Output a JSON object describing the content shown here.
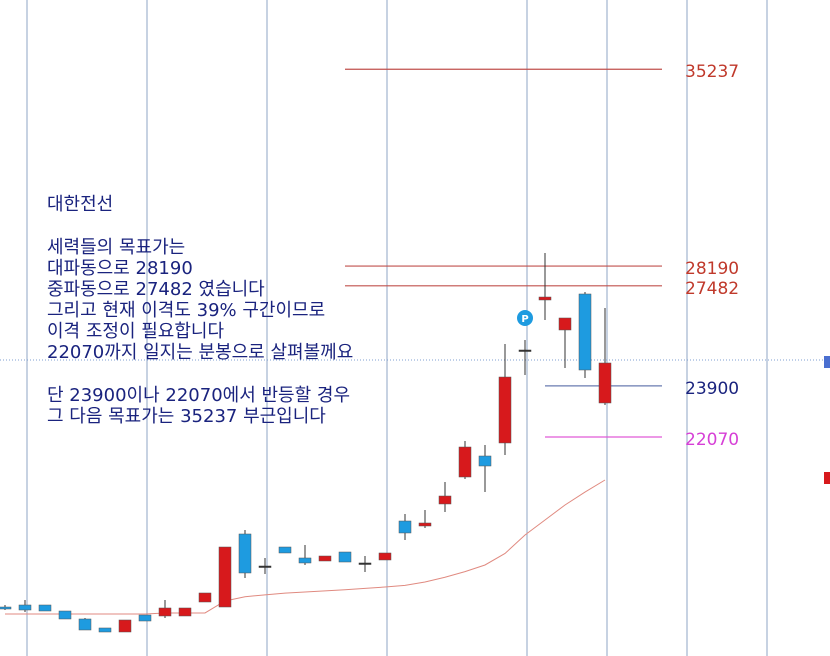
{
  "chart_data": {
    "type": "candlestick",
    "ylim": [
      14230,
      37715
    ],
    "candles": {
      "open": [
        15984,
        16056,
        16056,
        15841,
        15555,
        15233,
        15089,
        15698,
        15662,
        15662,
        16163,
        15984,
        18598,
        17452,
        18132,
        17739,
        17631,
        17953,
        17560,
        17667,
        19063,
        18884,
        19672,
        20638,
        21390,
        21856,
        25185,
        26975,
        25901,
        27190,
        23288
      ],
      "high": [
        16056,
        16235,
        16056,
        15841,
        15591,
        15233,
        15519,
        15698,
        16235,
        15949,
        16486,
        18132,
        18741,
        17739,
        18132,
        18204,
        17810,
        17953,
        17810,
        17918,
        19314,
        19457,
        20459,
        21927,
        21784,
        25400,
        25543,
        28658,
        26331,
        27261,
        26689
      ],
      "low": [
        15877,
        15805,
        15841,
        15555,
        15161,
        15089,
        15089,
        15483,
        15591,
        15662,
        16163,
        15984,
        17023,
        17166,
        17918,
        17488,
        17631,
        17595,
        17237,
        17667,
        18383,
        18813,
        19385,
        20567,
        20101,
        21426,
        24290,
        26259,
        24541,
        24183,
        23216
      ],
      "close": [
        15913,
        15877,
        15841,
        15555,
        15161,
        15089,
        15519,
        15483,
        15949,
        15949,
        16486,
        18132,
        17202,
        17452,
        17918,
        17560,
        17810,
        17595,
        17560,
        17918,
        18634,
        18992,
        19958,
        21712,
        21032,
        24218,
        25185,
        27082,
        26331,
        24469,
        24720
      ],
      "up_color": "#d7191c",
      "down_color": "#1e9be0",
      "flat_color": "#333333"
    },
    "ma": {
      "color": "#e08a80",
      "values": [
        15734,
        15734,
        15734,
        15734,
        15734,
        15734,
        15734,
        15734,
        15770,
        15770,
        15770,
        16200,
        16350,
        16420,
        16480,
        16521,
        16560,
        16600,
        16650,
        16700,
        16760,
        16879,
        17050,
        17250,
        17488,
        17900,
        18562,
        19100,
        19636,
        20100,
        20531
      ]
    },
    "levels": [
      {
        "value": 35237,
        "color": "#c0504d",
        "text_color": "#c0392b"
      },
      {
        "value": 28190,
        "color": "#c0504d",
        "text_color": "#c0392b"
      },
      {
        "value": 27482,
        "color": "#c0504d",
        "text_color": "#c0392b"
      },
      {
        "value": 23900,
        "color": "#6a7bb0",
        "text_color": "#1a237e"
      },
      {
        "value": 22070,
        "color": "#e05ad8",
        "text_color": "#d63fd6"
      }
    ],
    "marker": {
      "label": "P",
      "candle": 26,
      "color": "#1e9be0"
    },
    "annotation": [
      [
        "대한전선"
      ],
      [
        "세력들의 목표가는",
        "대파동으로 28190",
        "중파동으로 27482 였습니다",
        "그리고 현재 이격도 39% 구간이므로",
        "이격 조정이 필요합니다",
        "22070까지 일지는 분봉으로 살펴볼께요"
      ],
      [
        "단 23900이나 22070에서 반등할 경우",
        "그 다음 목표가는 35237 부근입니다"
      ]
    ]
  }
}
